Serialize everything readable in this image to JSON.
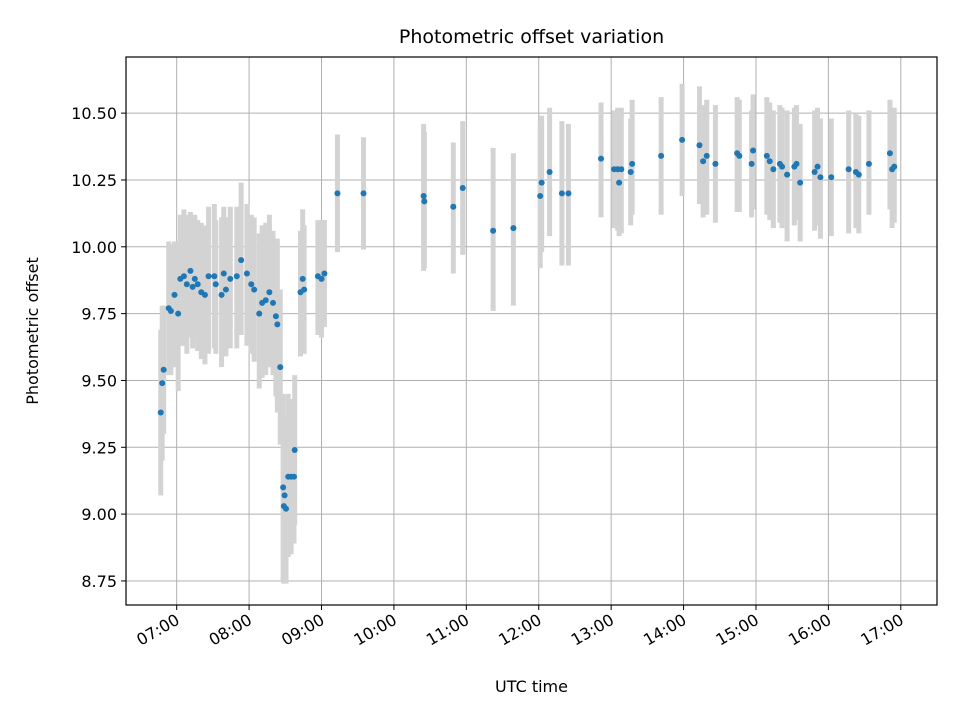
{
  "chart_data": {
    "type": "scatter",
    "title": "Photometric offset variation",
    "xlabel": "UTC time",
    "ylabel": "Photometric offset",
    "x_unit": "hours (UTC)",
    "xlim": [
      6.3,
      17.5
    ],
    "ylim": [
      8.66,
      10.71
    ],
    "xticks": [
      7,
      8,
      9,
      10,
      11,
      12,
      13,
      14,
      15,
      16,
      17
    ],
    "xtick_labels": [
      "07:00",
      "08:00",
      "09:00",
      "10:00",
      "11:00",
      "12:00",
      "13:00",
      "14:00",
      "15:00",
      "16:00",
      "17:00"
    ],
    "yticks": [
      8.75,
      9.0,
      9.25,
      9.5,
      9.75,
      10.0,
      10.25,
      10.5
    ],
    "ytick_labels": [
      "8.75",
      "9.00",
      "9.25",
      "9.50",
      "9.75",
      "10.00",
      "10.25",
      "10.50"
    ],
    "grid": true,
    "marker_color": "#1f77b4",
    "errorbar_color": "#d3d3d3",
    "points": [
      [
        6.78,
        9.38,
        9.07,
        9.69
      ],
      [
        6.8,
        9.49,
        9.2,
        9.78
      ],
      [
        6.82,
        9.54,
        9.3,
        9.78
      ],
      [
        6.89,
        9.77,
        9.52,
        10.02
      ],
      [
        6.92,
        9.76,
        9.52,
        10.01
      ],
      [
        6.97,
        9.82,
        9.55,
        10.02
      ],
      [
        7.02,
        9.75,
        9.46,
        10.02
      ],
      [
        7.05,
        9.88,
        9.63,
        10.12
      ],
      [
        7.1,
        9.89,
        9.63,
        10.14
      ],
      [
        7.14,
        9.86,
        9.6,
        10.12
      ],
      [
        7.19,
        9.91,
        9.66,
        10.13
      ],
      [
        7.22,
        9.85,
        9.62,
        10.09
      ],
      [
        7.25,
        9.88,
        9.64,
        10.12
      ],
      [
        7.29,
        9.86,
        9.61,
        10.1
      ],
      [
        7.34,
        9.83,
        9.58,
        10.09
      ],
      [
        7.39,
        9.82,
        9.56,
        10.08
      ],
      [
        7.44,
        9.89,
        9.6,
        10.15
      ],
      [
        7.52,
        9.89,
        9.62,
        10.16
      ],
      [
        7.54,
        9.86,
        9.6,
        10.1
      ],
      [
        7.62,
        9.82,
        9.55,
        10.11
      ],
      [
        7.65,
        9.9,
        9.63,
        10.15
      ],
      [
        7.68,
        9.84,
        9.59,
        10.11
      ],
      [
        7.74,
        9.88,
        9.62,
        10.15
      ],
      [
        7.83,
        9.89,
        9.62,
        10.15
      ],
      [
        7.89,
        9.95,
        9.67,
        10.24
      ],
      [
        7.97,
        9.9,
        9.63,
        10.16
      ],
      [
        8.03,
        9.86,
        9.6,
        10.12
      ],
      [
        8.07,
        9.84,
        9.57,
        10.11
      ],
      [
        8.14,
        9.75,
        9.47,
        10.05
      ],
      [
        8.18,
        9.79,
        9.51,
        10.08
      ],
      [
        8.23,
        9.8,
        9.52,
        10.09
      ],
      [
        8.28,
        9.83,
        9.55,
        10.12
      ],
      [
        8.33,
        9.79,
        9.52,
        10.06
      ],
      [
        8.37,
        9.74,
        9.44,
        10.03
      ],
      [
        8.39,
        9.71,
        9.38,
        10.03
      ],
      [
        8.43,
        9.55,
        9.26,
        9.84
      ],
      [
        8.47,
        9.1,
        8.75,
        9.45
      ],
      [
        8.48,
        9.03,
        8.74,
        9.32
      ],
      [
        8.49,
        9.07,
        8.77,
        9.37
      ],
      [
        8.51,
        9.02,
        8.74,
        9.3
      ],
      [
        8.54,
        9.14,
        8.84,
        9.45
      ],
      [
        8.58,
        9.14,
        8.85,
        9.43
      ],
      [
        8.62,
        9.14,
        8.89,
        9.39
      ],
      [
        8.63,
        9.24,
        8.96,
        9.52
      ],
      [
        8.71,
        9.83,
        9.59,
        10.06
      ],
      [
        8.74,
        9.88,
        9.61,
        10.14
      ],
      [
        8.76,
        9.84,
        9.6,
        10.08
      ],
      [
        8.95,
        9.89,
        9.67,
        10.1
      ],
      [
        9.0,
        9.88,
        9.66,
        10.1
      ],
      [
        9.04,
        9.9,
        9.7,
        10.1
      ],
      [
        9.22,
        10.2,
        9.98,
        10.42
      ],
      [
        9.58,
        10.2,
        9.99,
        10.41
      ],
      [
        10.41,
        10.19,
        9.91,
        10.46
      ],
      [
        10.42,
        10.17,
        9.92,
        10.43
      ],
      [
        10.82,
        10.15,
        9.9,
        10.39
      ],
      [
        10.95,
        10.22,
        9.97,
        10.47
      ],
      [
        11.37,
        10.06,
        9.76,
        10.37
      ],
      [
        11.65,
        10.07,
        9.78,
        10.35
      ],
      [
        12.02,
        10.19,
        9.92,
        10.47
      ],
      [
        12.04,
        10.24,
        9.98,
        10.49
      ],
      [
        12.15,
        10.28,
        10.04,
        10.52
      ],
      [
        12.32,
        10.2,
        9.93,
        10.47
      ],
      [
        12.41,
        10.2,
        9.93,
        10.46
      ],
      [
        12.86,
        10.33,
        10.11,
        10.54
      ],
      [
        13.04,
        10.29,
        10.07,
        10.51
      ],
      [
        13.09,
        10.29,
        10.06,
        10.52
      ],
      [
        13.11,
        10.24,
        10.04,
        10.45
      ],
      [
        13.14,
        10.29,
        10.05,
        10.52
      ],
      [
        13.27,
        10.28,
        10.08,
        10.48
      ],
      [
        13.29,
        10.31,
        10.12,
        10.55
      ],
      [
        13.69,
        10.34,
        10.12,
        10.56
      ],
      [
        13.98,
        10.4,
        10.19,
        10.61
      ],
      [
        14.22,
        10.38,
        10.16,
        10.6
      ],
      [
        14.27,
        10.32,
        10.11,
        10.53
      ],
      [
        14.32,
        10.34,
        10.12,
        10.55
      ],
      [
        14.44,
        10.31,
        10.09,
        10.53
      ],
      [
        14.74,
        10.35,
        10.13,
        10.56
      ],
      [
        14.77,
        10.34,
        10.13,
        10.55
      ],
      [
        14.94,
        10.31,
        10.11,
        10.51
      ],
      [
        14.96,
        10.36,
        10.14,
        10.57
      ],
      [
        15.15,
        10.34,
        10.12,
        10.56
      ],
      [
        15.19,
        10.32,
        10.1,
        10.54
      ],
      [
        15.24,
        10.29,
        10.07,
        10.51
      ],
      [
        15.33,
        10.31,
        10.09,
        10.53
      ],
      [
        15.36,
        10.3,
        10.07,
        10.52
      ],
      [
        15.43,
        10.27,
        10.02,
        10.51
      ],
      [
        15.53,
        10.3,
        10.08,
        10.52
      ],
      [
        15.56,
        10.31,
        10.1,
        10.53
      ],
      [
        15.61,
        10.24,
        10.02,
        10.46
      ],
      [
        15.81,
        10.28,
        10.06,
        10.51
      ],
      [
        15.85,
        10.3,
        10.08,
        10.52
      ],
      [
        15.89,
        10.26,
        10.03,
        10.48
      ],
      [
        16.04,
        10.26,
        10.04,
        10.48
      ],
      [
        16.28,
        10.29,
        10.05,
        10.51
      ],
      [
        16.38,
        10.28,
        10.07,
        10.5
      ],
      [
        16.42,
        10.27,
        10.05,
        10.49
      ],
      [
        16.56,
        10.31,
        10.12,
        10.51
      ],
      [
        16.85,
        10.35,
        10.14,
        10.55
      ],
      [
        16.88,
        10.29,
        10.07,
        10.52
      ],
      [
        16.91,
        10.3,
        10.09,
        10.52
      ]
    ]
  }
}
